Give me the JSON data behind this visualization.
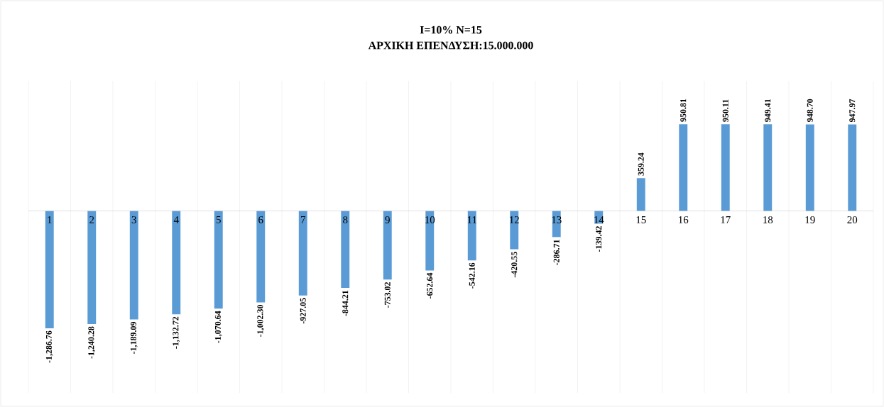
{
  "chart_data": {
    "type": "bar",
    "title": "I=10% N=15",
    "subtitle": "ΑΡΧΙΚΗ ΕΠΕΝΔΥΣΗ:15.000.000",
    "categories": [
      "1",
      "2",
      "3",
      "4",
      "5",
      "6",
      "7",
      "8",
      "9",
      "10",
      "11",
      "12",
      "13",
      "14",
      "15",
      "16",
      "17",
      "18",
      "19",
      "20"
    ],
    "values": [
      -1286.76,
      -1240.28,
      -1189.09,
      -1132.72,
      -1070.64,
      -1002.3,
      -927.05,
      -844.21,
      -753.02,
      -652.64,
      -542.16,
      -420.55,
      -286.71,
      -139.42,
      359.24,
      950.81,
      950.11,
      949.41,
      948.7,
      947.97
    ],
    "value_labels": [
      "-1,286.76",
      "-1,240.28",
      "-1,189.09",
      "-1,132.72",
      "-1,070.64",
      "-1,002.30",
      "-927.05",
      "-844.21",
      "-753.02",
      "-652.64",
      "-542.16",
      "-420.55",
      "-286.71",
      "-139.42",
      "359.24",
      "950.81",
      "950.11",
      "949.41",
      "948.70",
      "947.97"
    ],
    "color": "#5b9bd5",
    "grid": "x"
  }
}
